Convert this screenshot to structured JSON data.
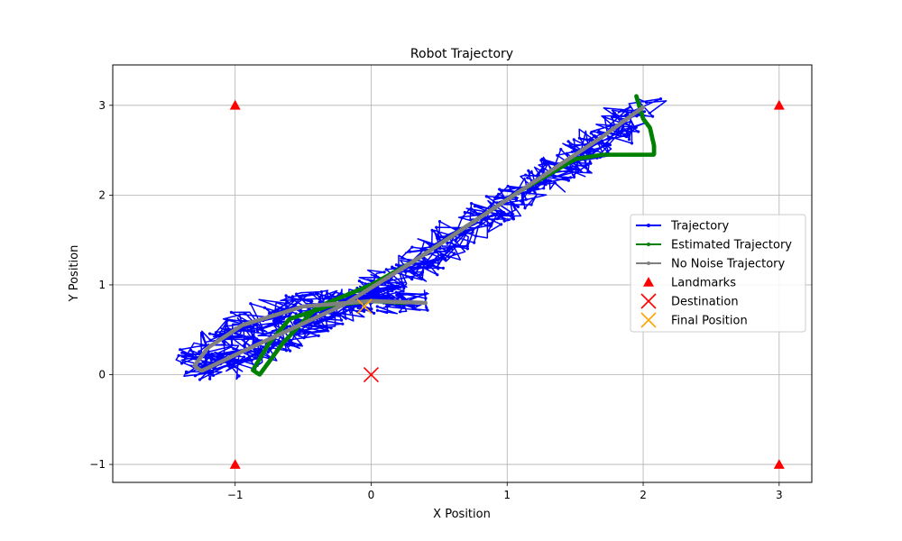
{
  "chart_data": {
    "type": "line",
    "title": "Robot Trajectory",
    "xlabel": "X Position",
    "ylabel": "Y Position",
    "xlim": [
      -1.9,
      3.24
    ],
    "ylim": [
      -1.2,
      3.45
    ],
    "xticks": [
      -1,
      0,
      1,
      2,
      3
    ],
    "yticks": [
      -1,
      0,
      1,
      2,
      3
    ],
    "xtick_labels": [
      "−1",
      "0",
      "1",
      "2",
      "3"
    ],
    "ytick_labels": [
      "−1",
      "0",
      "1",
      "2",
      "3"
    ],
    "grid": true,
    "legend_position": "center-right",
    "series": [
      {
        "name": "Trajectory",
        "color": "#0000ff",
        "style": "noisy-line",
        "noise": 0.14,
        "path": [
          [
            0.35,
            0.8
          ],
          [
            0.0,
            0.83
          ],
          [
            -0.5,
            0.78
          ],
          [
            -0.95,
            0.55
          ],
          [
            -1.2,
            0.3
          ],
          [
            -1.3,
            0.1
          ],
          [
            -1.2,
            0.05
          ],
          [
            -0.6,
            0.45
          ],
          [
            0.0,
            0.9
          ],
          [
            0.5,
            1.4
          ],
          [
            1.0,
            1.95
          ],
          [
            1.5,
            2.4
          ],
          [
            2.0,
            2.98
          ]
        ]
      },
      {
        "name": "Estimated Trajectory",
        "color": "#008000",
        "style": "dotted-line",
        "path": [
          [
            0.25,
            0.8
          ],
          [
            0.0,
            0.82
          ],
          [
            -0.3,
            0.77
          ],
          [
            -0.6,
            0.62
          ],
          [
            -0.75,
            0.35
          ],
          [
            -0.87,
            0.05
          ],
          [
            -0.82,
            0.0
          ],
          [
            -0.65,
            0.35
          ],
          [
            -0.4,
            0.75
          ],
          [
            0.0,
            1.0
          ],
          [
            0.3,
            1.25
          ],
          [
            0.7,
            1.65
          ],
          [
            1.1,
            2.05
          ],
          [
            1.5,
            2.4
          ],
          [
            1.7,
            2.45
          ],
          [
            2.08,
            2.45
          ],
          [
            2.08,
            2.55
          ],
          [
            2.05,
            2.75
          ],
          [
            2.0,
            2.85
          ],
          [
            1.95,
            3.1
          ]
        ]
      },
      {
        "name": "No Noise Trajectory",
        "color": "#808080",
        "style": "thick-line",
        "path": [
          [
            0.4,
            0.8
          ],
          [
            0.0,
            0.82
          ],
          [
            -0.5,
            0.76
          ],
          [
            -0.95,
            0.55
          ],
          [
            -1.2,
            0.3
          ],
          [
            -1.3,
            0.1
          ],
          [
            -1.25,
            0.04
          ],
          [
            -1.0,
            0.22
          ],
          [
            -0.6,
            0.5
          ],
          [
            -0.2,
            0.78
          ],
          [
            0.3,
            1.25
          ],
          [
            0.8,
            1.75
          ],
          [
            1.3,
            2.25
          ],
          [
            1.7,
            2.65
          ],
          [
            2.0,
            2.98
          ]
        ]
      }
    ],
    "landmarks": {
      "name": "Landmarks",
      "color": "#ff0000",
      "points": [
        [
          -1,
          3
        ],
        [
          3,
          3
        ],
        [
          -1,
          -1
        ],
        [
          3,
          -1
        ]
      ]
    },
    "destination": {
      "name": "Destination",
      "color": "#ff0000",
      "point": [
        0,
        0
      ]
    },
    "final_position": {
      "name": "Final Position",
      "color": "#ffa500",
      "point": [
        -0.05,
        0.76
      ]
    }
  }
}
